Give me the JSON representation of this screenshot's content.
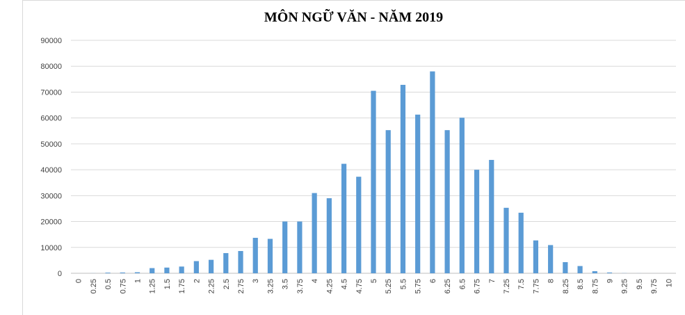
{
  "chart_data": {
    "type": "bar",
    "title": "MÔN NGỮ VĂN - NĂM 2019",
    "xlabel": "",
    "ylabel": "",
    "ylim": [
      0,
      90000
    ],
    "yticks": [
      0,
      10000,
      20000,
      30000,
      40000,
      50000,
      60000,
      70000,
      80000,
      90000
    ],
    "grid": true,
    "legend": "none",
    "bar_color": "#5b9bd5",
    "categories": [
      "0",
      "0.25",
      "0.5",
      "0.75",
      "1",
      "1.25",
      "1.5",
      "1.75",
      "2",
      "2.25",
      "2.5",
      "2.75",
      "3",
      "3.25",
      "3.5",
      "3.75",
      "4",
      "4.25",
      "4.5",
      "4.75",
      "5",
      "5.25",
      "5.5",
      "5.75",
      "6",
      "6.25",
      "6.5",
      "6.75",
      "7",
      "7.25",
      "7.5",
      "7.75",
      "8",
      "8.25",
      "8.5",
      "8.75",
      "9",
      "9.25",
      "9.5",
      "9.75",
      "10"
    ],
    "values": [
      0,
      30,
      250,
      300,
      400,
      2000,
      2200,
      2600,
      4700,
      5200,
      7800,
      8600,
      13700,
      13300,
      20000,
      20000,
      31000,
      29000,
      42300,
      37300,
      70500,
      55300,
      72800,
      61300,
      78000,
      55300,
      60100,
      40000,
      43800,
      25300,
      23400,
      12700,
      10900,
      4300,
      2800,
      800,
      300,
      50,
      20,
      5,
      0
    ]
  }
}
